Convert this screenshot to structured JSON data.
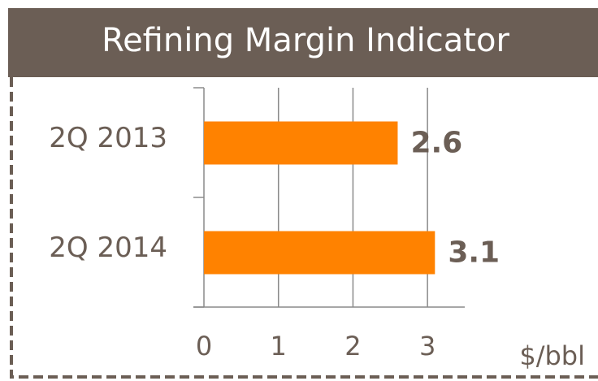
{
  "chart_data": {
    "type": "hbar",
    "title": "Refining Margin Indicator",
    "categories": [
      "2Q 2013",
      "2Q 2014"
    ],
    "values": [
      2.6,
      3.1
    ],
    "color": "#ff8200",
    "x_label": "$/bbl",
    "xlim": [
      0,
      3.5
    ],
    "xticks": [
      0,
      1,
      2,
      3
    ],
    "grid": true
  }
}
